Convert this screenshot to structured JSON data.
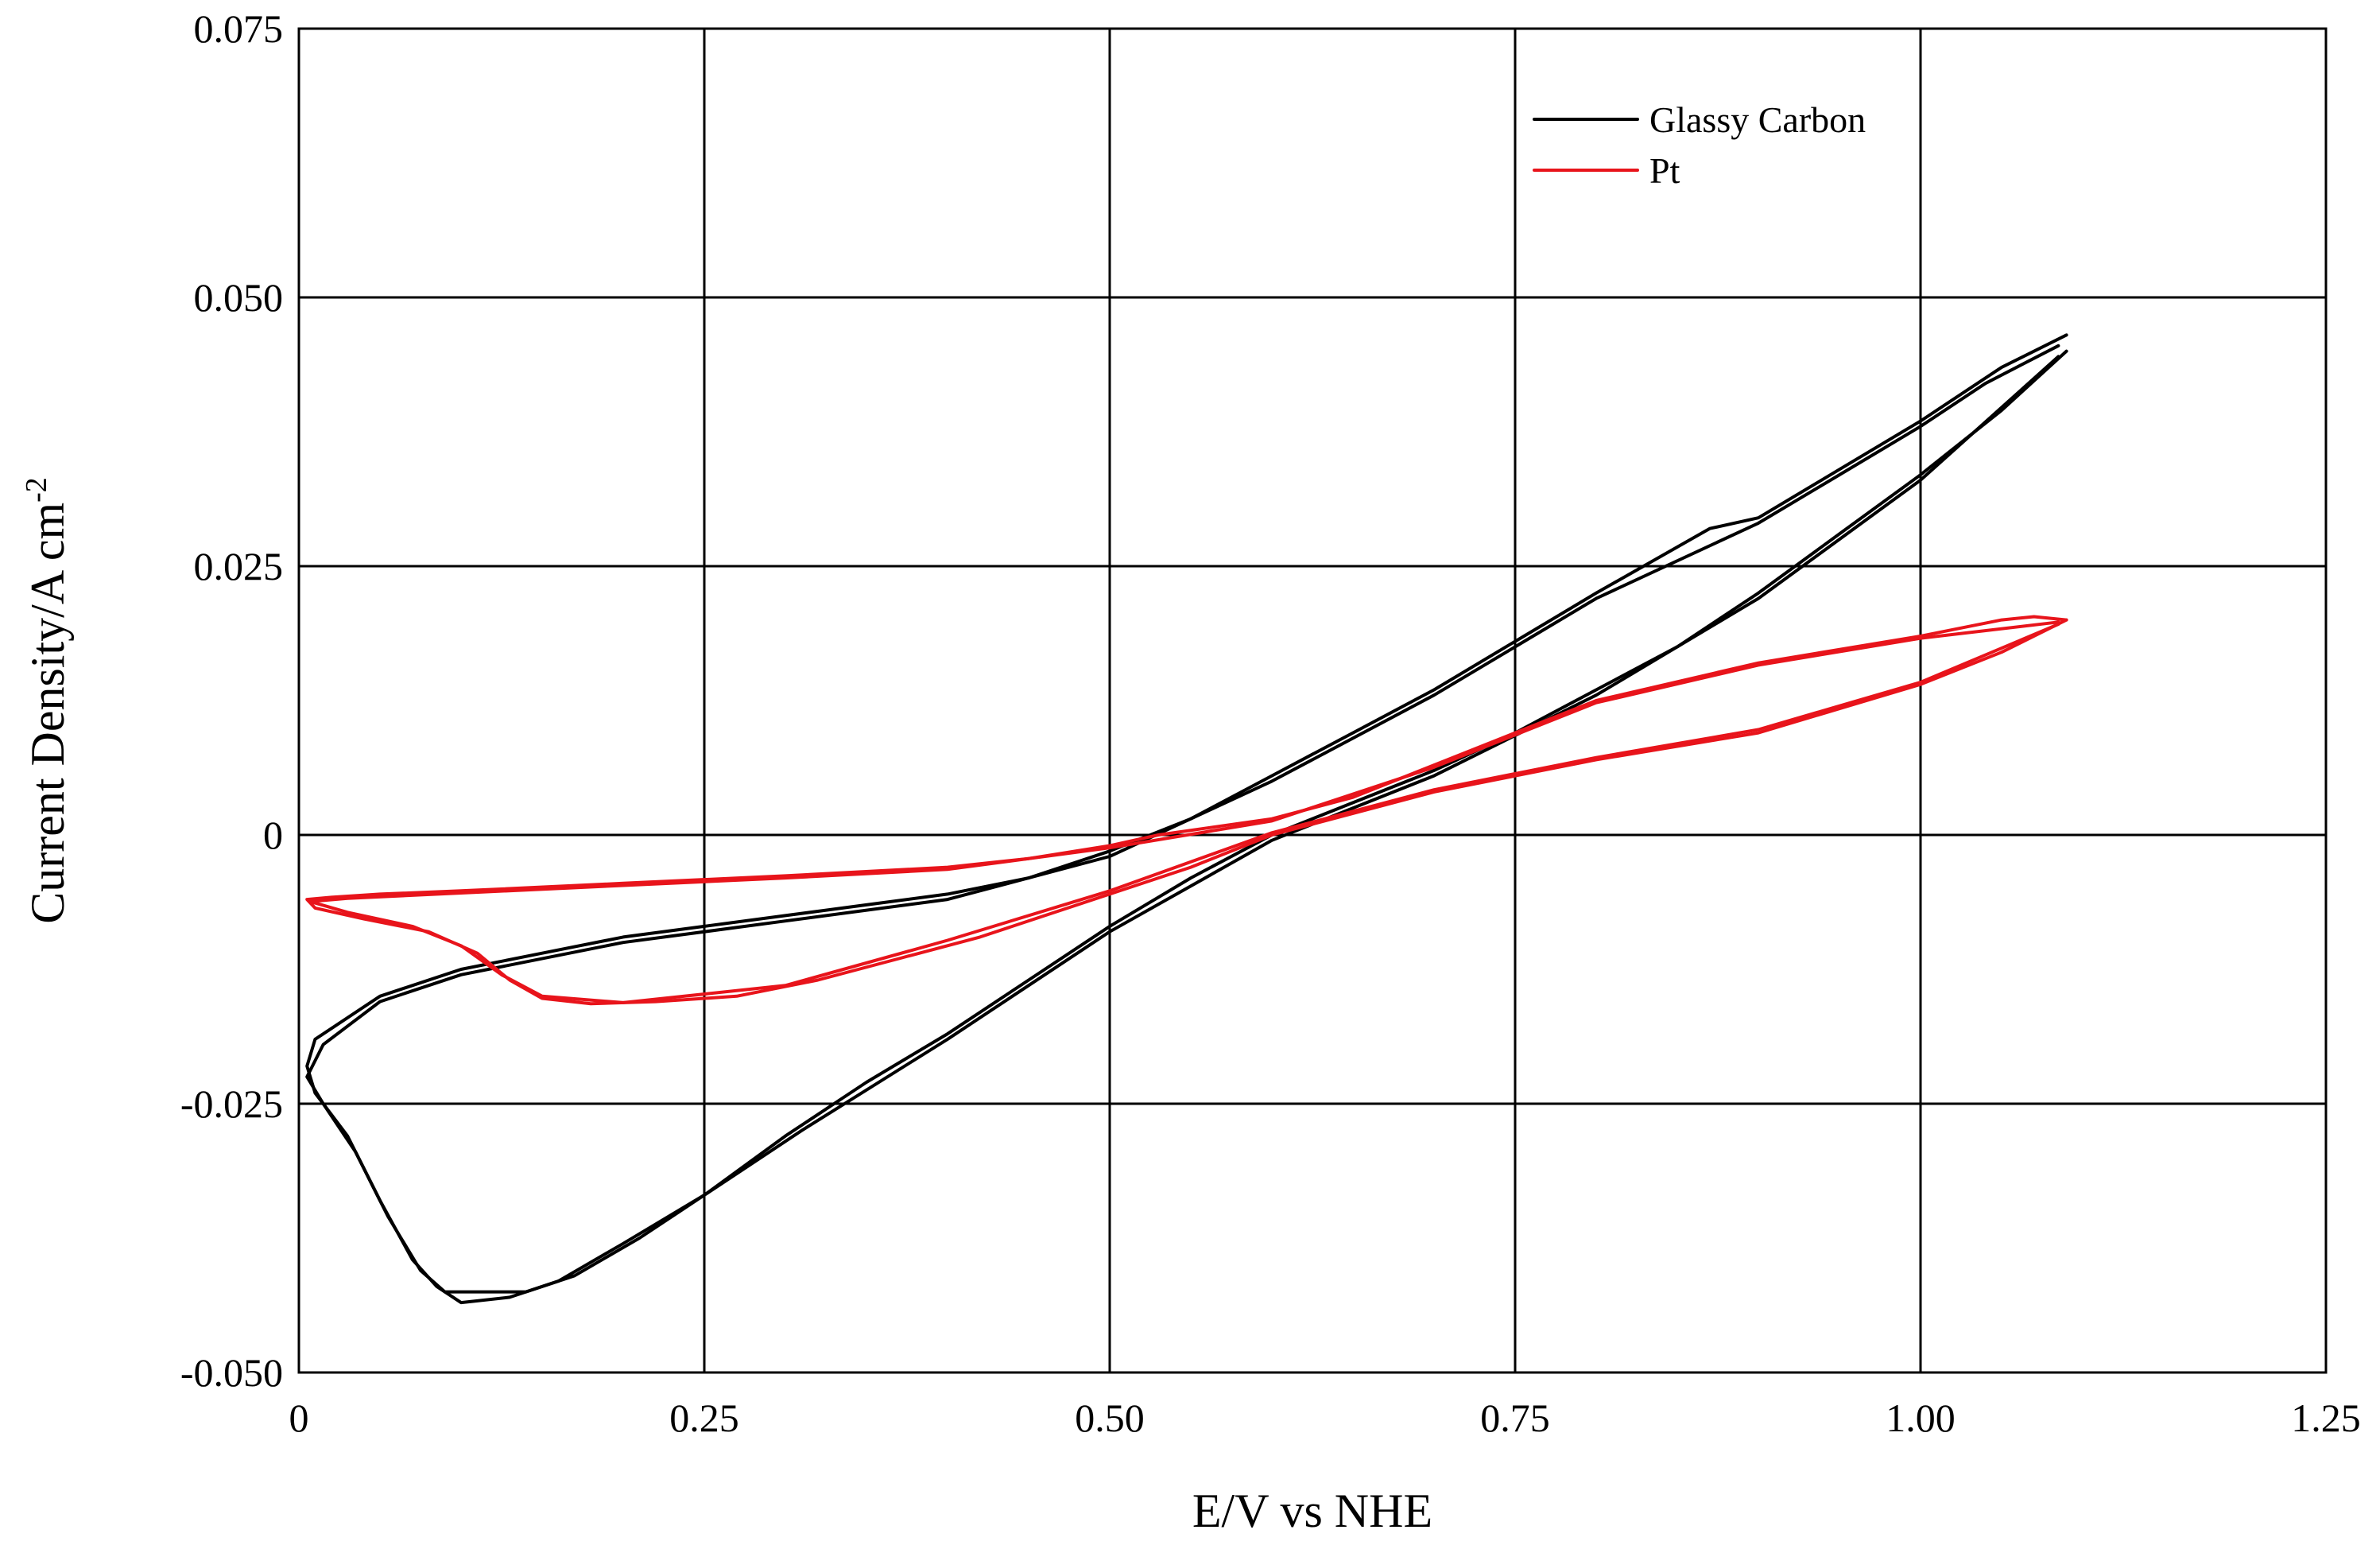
{
  "chart_data": {
    "type": "line",
    "title": "",
    "xlabel": "E/V vs NHE",
    "ylabel": "Current Density/A cm",
    "ylabel_superscript": "-2",
    "xlim": [
      0,
      1.25
    ],
    "ylim": [
      -0.05,
      0.075
    ],
    "grid": true,
    "legend_position": "top-right",
    "x_ticks": [
      {
        "value": 0,
        "label": "0"
      },
      {
        "value": 0.25,
        "label": "0.25"
      },
      {
        "value": 0.5,
        "label": "0.50"
      },
      {
        "value": 0.75,
        "label": "0.75"
      },
      {
        "value": 1.0,
        "label": "1.00"
      },
      {
        "value": 1.25,
        "label": "1.25"
      }
    ],
    "y_ticks": [
      {
        "value": -0.05,
        "label": "-0.050"
      },
      {
        "value": -0.025,
        "label": "-0.025"
      },
      {
        "value": 0,
        "label": "0"
      },
      {
        "value": 0.025,
        "label": "0.025"
      },
      {
        "value": 0.05,
        "label": "0.050"
      },
      {
        "value": 0.075,
        "label": "0.075"
      }
    ],
    "series": [
      {
        "name": "Glassy Carbon",
        "color": "#000000",
        "cycles": [
          [
            [
              1.09,
              0.0465
            ],
            [
              1.05,
              0.0435
            ],
            [
              1.0,
              0.0385
            ],
            [
              0.95,
              0.034
            ],
            [
              0.9,
              0.0295
            ],
            [
              0.87,
              0.0285
            ],
            [
              0.8,
              0.0225
            ],
            [
              0.75,
              0.018
            ],
            [
              0.7,
              0.0135
            ],
            [
              0.65,
              0.0095
            ],
            [
              0.6,
              0.0055
            ],
            [
              0.55,
              0.0015
            ],
            [
              0.5,
              -0.0015
            ],
            [
              0.45,
              -0.004
            ],
            [
              0.4,
              -0.0055
            ],
            [
              0.35,
              -0.0065
            ],
            [
              0.3,
              -0.0075
            ],
            [
              0.25,
              -0.0085
            ],
            [
              0.2,
              -0.0095
            ],
            [
              0.15,
              -0.011
            ],
            [
              0.1,
              -0.0125
            ],
            [
              0.05,
              -0.015
            ],
            [
              0.02,
              -0.018
            ],
            [
              0.01,
              -0.019
            ],
            [
              0.005,
              -0.0215
            ],
            [
              0.01,
              -0.024
            ],
            [
              0.03,
              -0.028
            ],
            [
              0.05,
              -0.034
            ],
            [
              0.07,
              -0.0395
            ],
            [
              0.085,
              -0.042
            ],
            [
              0.1,
              -0.0435
            ],
            [
              0.13,
              -0.043
            ],
            [
              0.16,
              -0.0415
            ],
            [
              0.2,
              -0.038
            ],
            [
              0.25,
              -0.0335
            ],
            [
              0.3,
              -0.028
            ],
            [
              0.35,
              -0.023
            ],
            [
              0.4,
              -0.0185
            ],
            [
              0.45,
              -0.0135
            ],
            [
              0.5,
              -0.0085
            ],
            [
              0.55,
              -0.004
            ],
            [
              0.6,
              0.0
            ],
            [
              0.65,
              0.003
            ],
            [
              0.7,
              0.006
            ],
            [
              0.75,
              0.0095
            ],
            [
              0.8,
              0.0135
            ],
            [
              0.85,
              0.0175
            ],
            [
              0.9,
              0.0225
            ],
            [
              0.95,
              0.028
            ],
            [
              1.0,
              0.0335
            ],
            [
              1.05,
              0.0395
            ],
            [
              1.09,
              0.045
            ]
          ],
          [
            [
              1.085,
              0.0455
            ],
            [
              1.04,
              0.042
            ],
            [
              1.0,
              0.038
            ],
            [
              0.95,
              0.0335
            ],
            [
              0.9,
              0.029
            ],
            [
              0.8,
              0.022
            ],
            [
              0.7,
              0.013
            ],
            [
              0.6,
              0.005
            ],
            [
              0.5,
              -0.002
            ],
            [
              0.4,
              -0.006
            ],
            [
              0.3,
              -0.008
            ],
            [
              0.2,
              -0.01
            ],
            [
              0.1,
              -0.013
            ],
            [
              0.05,
              -0.0155
            ],
            [
              0.015,
              -0.0195
            ],
            [
              0.005,
              -0.0225
            ],
            [
              0.015,
              -0.025
            ],
            [
              0.035,
              -0.0295
            ],
            [
              0.055,
              -0.0355
            ],
            [
              0.075,
              -0.0405
            ],
            [
              0.09,
              -0.0425
            ],
            [
              0.11,
              -0.0425
            ],
            [
              0.14,
              -0.0425
            ],
            [
              0.17,
              -0.041
            ],
            [
              0.21,
              -0.0375
            ],
            [
              0.26,
              -0.0325
            ],
            [
              0.31,
              -0.0275
            ],
            [
              0.4,
              -0.019
            ],
            [
              0.5,
              -0.009
            ],
            [
              0.6,
              -0.0005
            ],
            [
              0.7,
              0.0055
            ],
            [
              0.8,
              0.013
            ],
            [
              0.9,
              0.022
            ],
            [
              1.0,
              0.033
            ],
            [
              1.085,
              0.0445
            ]
          ]
        ]
      },
      {
        "name": "Pt",
        "color": "#e8141b",
        "cycles": [
          [
            [
              1.09,
              0.02
            ],
            [
              1.07,
              0.0203
            ],
            [
              1.05,
              0.02
            ],
            [
              1.0,
              0.0185
            ],
            [
              0.9,
              0.016
            ],
            [
              0.8,
              0.0125
            ],
            [
              0.75,
              0.0095
            ],
            [
              0.7,
              0.0065
            ],
            [
              0.65,
              0.0035
            ],
            [
              0.6,
              0.0015
            ],
            [
              0.53,
              0.0
            ],
            [
              0.5,
              -0.001
            ],
            [
              0.45,
              -0.0022
            ],
            [
              0.4,
              -0.003
            ],
            [
              0.3,
              -0.0038
            ],
            [
              0.2,
              -0.0045
            ],
            [
              0.1,
              -0.0052
            ],
            [
              0.05,
              -0.0055
            ],
            [
              0.02,
              -0.0058
            ],
            [
              0.005,
              -0.006
            ],
            [
              0.01,
              -0.0068
            ],
            [
              0.04,
              -0.0078
            ],
            [
              0.08,
              -0.009
            ],
            [
              0.11,
              -0.011
            ],
            [
              0.13,
              -0.0135
            ],
            [
              0.15,
              -0.0152
            ],
            [
              0.18,
              -0.0157
            ],
            [
              0.22,
              -0.0155
            ],
            [
              0.27,
              -0.015
            ],
            [
              0.32,
              -0.0135
            ],
            [
              0.37,
              -0.0115
            ],
            [
              0.42,
              -0.0095
            ],
            [
              0.47,
              -0.007
            ],
            [
              0.5,
              -0.0055
            ],
            [
              0.55,
              -0.003
            ],
            [
              0.6,
              0.0
            ],
            [
              0.7,
              0.004
            ],
            [
              0.8,
              0.007
            ],
            [
              0.9,
              0.0095
            ],
            [
              1.0,
              0.014
            ],
            [
              1.05,
              0.017
            ],
            [
              1.09,
              0.02
            ]
          ],
          [
            [
              1.085,
              0.0198
            ],
            [
              1.0,
              0.0183
            ],
            [
              0.9,
              0.0158
            ],
            [
              0.8,
              0.0123
            ],
            [
              0.7,
              0.0063
            ],
            [
              0.6,
              0.0013
            ],
            [
              0.5,
              -0.0012
            ],
            [
              0.4,
              -0.0032
            ],
            [
              0.3,
              -0.004
            ],
            [
              0.2,
              -0.0047
            ],
            [
              0.1,
              -0.0054
            ],
            [
              0.03,
              -0.0059
            ],
            [
              0.007,
              -0.0062
            ],
            [
              0.03,
              -0.0072
            ],
            [
              0.07,
              -0.0085
            ],
            [
              0.1,
              -0.0103
            ],
            [
              0.125,
              -0.013
            ],
            [
              0.15,
              -0.015
            ],
            [
              0.2,
              -0.0156
            ],
            [
              0.3,
              -0.014
            ],
            [
              0.4,
              -0.0098
            ],
            [
              0.5,
              -0.0052
            ],
            [
              0.6,
              0.0002
            ],
            [
              0.7,
              0.0042
            ],
            [
              0.8,
              0.0072
            ],
            [
              0.9,
              0.0098
            ],
            [
              1.0,
              0.0142
            ],
            [
              1.085,
              0.0196
            ]
          ]
        ]
      }
    ]
  }
}
